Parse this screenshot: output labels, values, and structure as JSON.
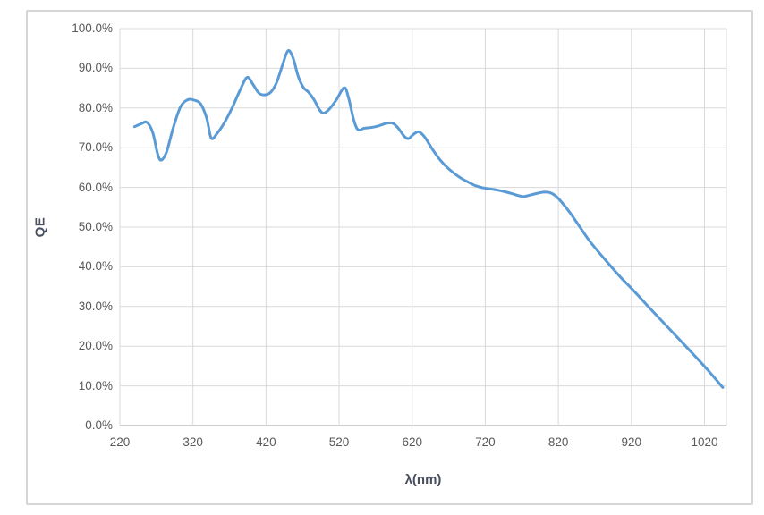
{
  "chart": {
    "y_axis_title": "QE",
    "x_axis_title": "λ(nm)",
    "y_ticks": [
      "100.0%",
      "90.0%",
      "80.0%",
      "70.0%",
      "60.0%",
      "50.0%",
      "40.0%",
      "30.0%",
      "20.0%",
      "10.0%",
      "0.0%"
    ],
    "x_ticks": [
      "220",
      "320",
      "420",
      "520",
      "620",
      "720",
      "820",
      "920",
      "1020"
    ],
    "colors": {
      "line": "#5B9BD5",
      "gridline": "#D9D9D9",
      "axis_line": "#BFBFBF",
      "tick_text": "#595959",
      "title_text": "#474e5d",
      "frame_border": "#D6D6D6",
      "background": "#FFFFFF"
    }
  },
  "chart_data": {
    "type": "line",
    "title": "",
    "xlabel": "λ(nm)",
    "ylabel": "QE",
    "xlim": [
      220,
      1050
    ],
    "ylim": [
      0,
      100
    ],
    "x_tick_values": [
      220,
      320,
      420,
      520,
      620,
      720,
      820,
      920,
      1020
    ],
    "y_tick_values": [
      0,
      10,
      20,
      30,
      40,
      50,
      60,
      70,
      80,
      90,
      100
    ],
    "y_unit": "percent",
    "grid": true,
    "legend_position": "none",
    "series": [
      {
        "name": "QE",
        "color": "#5B9BD5",
        "x": [
          240,
          249,
          257,
          265,
          272,
          277,
          284,
          293,
          303,
          313,
          323,
          331,
          339,
          345,
          353,
          363,
          373,
          384,
          394,
          402,
          410,
          418,
          426,
          434,
          442,
          450,
          457,
          464,
          471,
          478,
          486,
          493,
          499,
          507,
          516,
          527,
          533,
          540,
          546,
          554,
          564,
          574,
          584,
          593,
          601,
          609,
          615,
          622,
          629,
          637,
          647,
          657,
          667,
          677,
          687,
          697,
          707,
          717,
          727,
          737,
          747,
          757,
          766,
          773,
          782,
          791,
          800,
          808,
          816,
          824,
          834,
          844,
          854,
          864,
          884,
          904,
          924,
          944,
          964,
          984,
          1004,
          1024,
          1045
        ],
        "y": [
          75.3,
          76.0,
          76.4,
          73.8,
          68.2,
          66.9,
          69.0,
          75.0,
          80.3,
          82.1,
          81.9,
          80.9,
          77.3,
          72.4,
          73.6,
          76.3,
          79.8,
          84.3,
          87.7,
          86.0,
          83.8,
          83.3,
          83.9,
          86.2,
          90.5,
          94.4,
          92.6,
          88.0,
          85.2,
          84.0,
          82.0,
          79.6,
          78.7,
          79.8,
          82.0,
          85.1,
          82.5,
          77.0,
          74.5,
          74.9,
          75.1,
          75.5,
          76.1,
          76.2,
          74.9,
          72.9,
          72.3,
          73.4,
          74.0,
          72.7,
          69.8,
          67.2,
          65.2,
          63.6,
          62.3,
          61.3,
          60.4,
          59.9,
          59.6,
          59.3,
          58.9,
          58.4,
          57.9,
          57.7,
          58.1,
          58.5,
          58.8,
          58.7,
          57.9,
          56.4,
          54.1,
          51.5,
          48.8,
          46.2,
          41.8,
          37.6,
          33.8,
          29.8,
          25.9,
          22.0,
          18.1,
          14.1,
          9.6
        ]
      }
    ]
  }
}
